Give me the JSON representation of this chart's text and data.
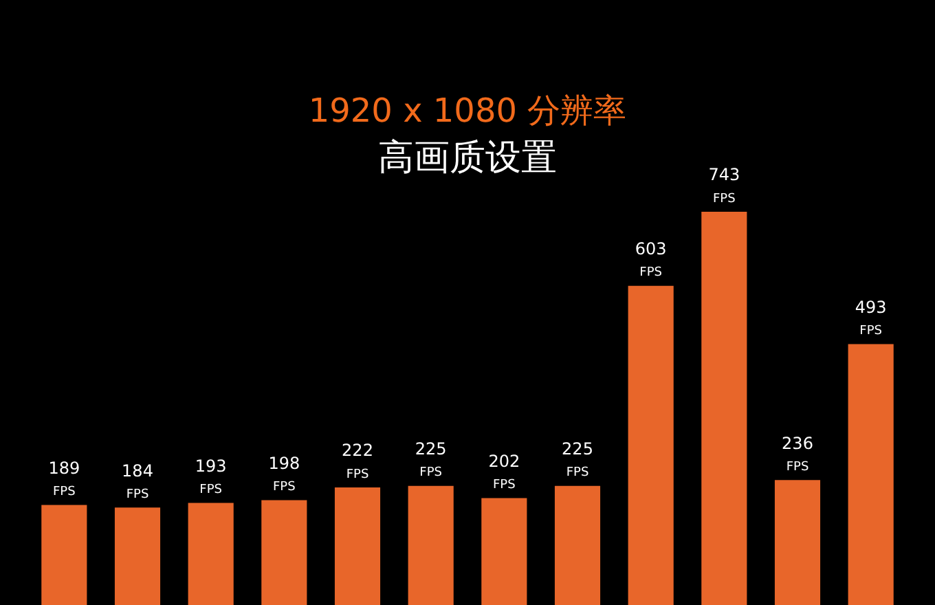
{
  "chart_data": {
    "type": "bar",
    "title": "1920 x 1080 分辨率",
    "subtitle": "高画质设置",
    "categories": [
      null,
      null,
      null,
      null,
      null,
      null,
      null,
      null,
      null,
      null,
      null,
      null
    ],
    "values": [
      189,
      184,
      193,
      198,
      222,
      225,
      202,
      225,
      603,
      743,
      236,
      493
    ],
    "value_labels": [
      "189 FPS",
      "184 FPS",
      "193 FPS",
      "198 FPS",
      "222 FPS",
      "225 FPS",
      "202 FPS",
      "225 FPS",
      "603 FPS",
      "743 FPS",
      "236 FPS",
      "493 FPS"
    ],
    "color": "#e8662a"
  }
}
